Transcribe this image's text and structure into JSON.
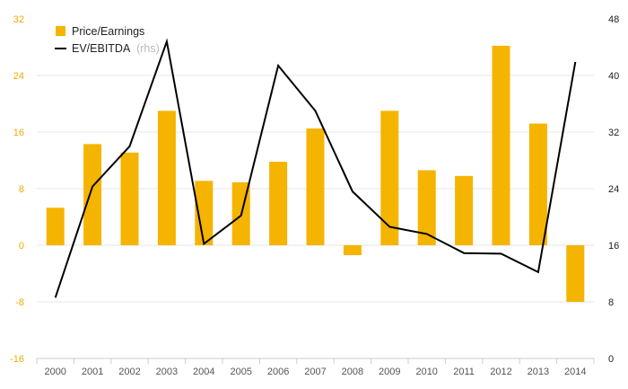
{
  "chart_data": {
    "type": "bar",
    "categories": [
      "2000",
      "2001",
      "2002",
      "2003",
      "2004",
      "2005",
      "2006",
      "2007",
      "2008",
      "2009",
      "2010",
      "2011",
      "2012",
      "2013",
      "2014"
    ],
    "series": [
      {
        "name": "Price/Earnings",
        "type": "bar",
        "axis": "left",
        "color": "#f5b400",
        "values": [
          5.3,
          14.3,
          13.1,
          19.0,
          9.1,
          8.9,
          11.8,
          16.5,
          -1.4,
          19.0,
          10.6,
          9.8,
          28.2,
          17.2,
          -8.0
        ]
      },
      {
        "name": "EV/EBITDA",
        "name_suffix": "(rhs)",
        "type": "line",
        "axis": "right",
        "color": "#000000",
        "values": [
          8.6,
          24.3,
          30.0,
          44.8,
          16.2,
          20.2,
          41.4,
          35.0,
          23.6,
          18.6,
          17.6,
          14.9,
          14.8,
          12.2,
          41.9
        ]
      }
    ],
    "left_axis": {
      "ticks": [
        "-16",
        "-8",
        "0",
        "8",
        "16",
        "24",
        "32"
      ],
      "range": [
        -16,
        32
      ],
      "color": "#f0ab00"
    },
    "right_axis": {
      "ticks": [
        "0",
        "8",
        "16",
        "24",
        "32",
        "40",
        "48"
      ],
      "range": [
        0,
        48
      ]
    },
    "grid": true,
    "legend_position": "top-left"
  }
}
